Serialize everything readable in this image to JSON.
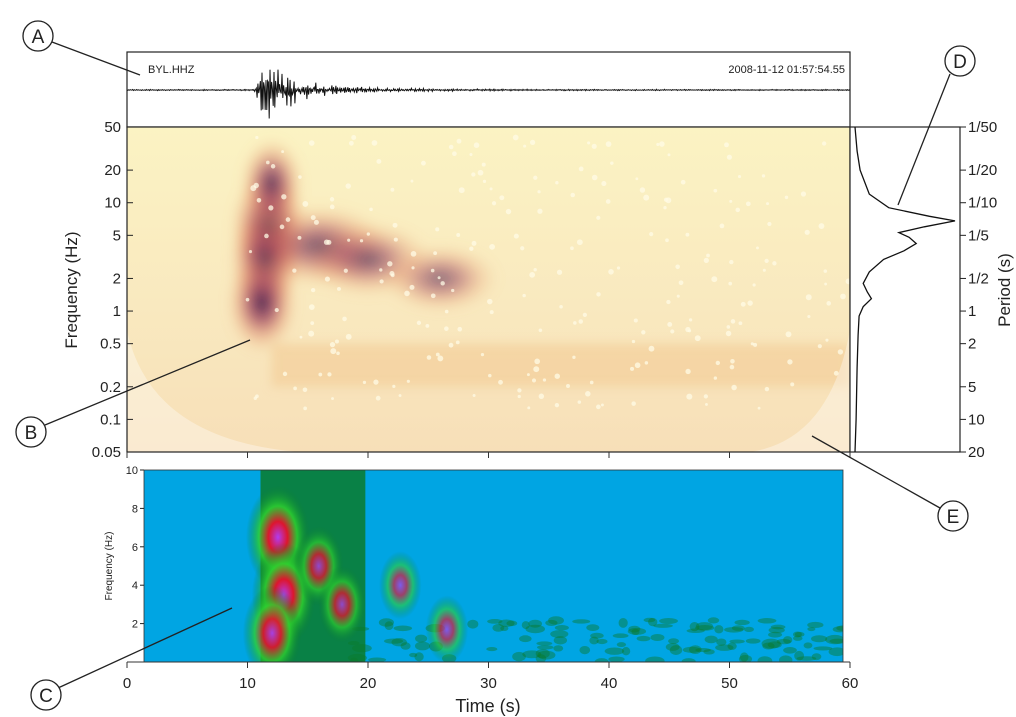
{
  "seismogram": {
    "station": "BYL.HHZ",
    "timestamp": "2008-11-12 01:57:54.55"
  },
  "callouts": [
    "A",
    "B",
    "C",
    "D",
    "E"
  ],
  "chart_data": [
    {
      "type": "line",
      "panel": "seismogram trace",
      "title": "BYL.HHZ",
      "subtitle": "2008-11-12 01:57:54.55",
      "x_range_s": [
        0,
        60
      ],
      "onset_s": 10.5,
      "peak_amplitude_at_s": 11.5
    },
    {
      "type": "heatmap",
      "panel": "continuous wavelet transform scalogram",
      "ylabel": "Frequency (Hz)",
      "ylabel_right": "Period (s)",
      "y_scale": "log",
      "ylim": [
        0.05,
        50
      ],
      "yticks": [
        "0.05",
        "0.1",
        "0.2",
        "0.5",
        "1",
        "2",
        "5",
        "10",
        "20",
        "50"
      ],
      "yticks_right": [
        "20",
        "10",
        "5",
        "2",
        "1",
        "1/2",
        "1/5",
        "1/10",
        "1/20",
        "1/50"
      ],
      "xlim": [
        0,
        60
      ],
      "colormap": [
        "#fbf4c0",
        "#f2c486",
        "#d9735a",
        "#9b3c59",
        "#3a1448"
      ],
      "energy_peaks": [
        {
          "t": 11.8,
          "f": 6,
          "level": 1.0
        },
        {
          "t": 11.5,
          "f": 3,
          "level": 0.9
        },
        {
          "t": 11.2,
          "f": 1.2,
          "level": 0.85
        },
        {
          "t": 12.0,
          "f": 15,
          "level": 0.7
        },
        {
          "t": 16,
          "f": 4,
          "level": 0.55
        },
        {
          "t": 20,
          "f": 3,
          "level": 0.45
        },
        {
          "t": 26,
          "f": 2,
          "level": 0.35
        }
      ]
    },
    {
      "type": "line",
      "panel": "global spectrum",
      "ylim_hz": [
        0.05,
        50
      ],
      "series": [
        {
          "freq_hz": [
            50,
            30,
            20,
            12,
            9,
            7.5,
            6.8,
            6.0,
            5.3,
            4.8,
            4.2,
            3.6,
            3.0,
            2.3,
            1.8,
            1.5,
            1.3,
            1.1,
            0.9,
            0.6,
            0.3,
            0.1,
            0.05
          ],
          "amplitude": [
            0.02,
            0.04,
            0.07,
            0.16,
            0.35,
            0.75,
            1.0,
            0.7,
            0.45,
            0.55,
            0.62,
            0.5,
            0.3,
            0.16,
            0.1,
            0.14,
            0.18,
            0.1,
            0.06,
            0.05,
            0.04,
            0.03,
            0.02
          ]
        }
      ]
    },
    {
      "type": "heatmap",
      "panel": "spectrogram",
      "ylabel": "Frequency (Hz)",
      "xlabel": "Time (s)",
      "xlim": [
        0,
        60
      ],
      "ylim": [
        0,
        10
      ],
      "xticks": [
        "0",
        "10",
        "20",
        "30",
        "40",
        "50",
        "60"
      ],
      "yticks": [
        "2",
        "4",
        "6",
        "8",
        "10"
      ],
      "colormap": [
        "#00a5e3",
        "#0b7a2a",
        "#2ed12e",
        "#e8102c",
        "#b03cf0"
      ],
      "energy_peaks": [
        {
          "t": 11.5,
          "f": 6.5,
          "level": 1.0
        },
        {
          "t": 12.0,
          "f": 3.5,
          "level": 1.0
        },
        {
          "t": 11.0,
          "f": 1.5,
          "level": 0.85
        },
        {
          "t": 15,
          "f": 5,
          "level": 0.6
        },
        {
          "t": 17,
          "f": 3,
          "level": 0.55
        },
        {
          "t": 22,
          "f": 4,
          "level": 0.4
        },
        {
          "t": 26,
          "f": 1.7,
          "level": 0.4
        }
      ]
    }
  ]
}
